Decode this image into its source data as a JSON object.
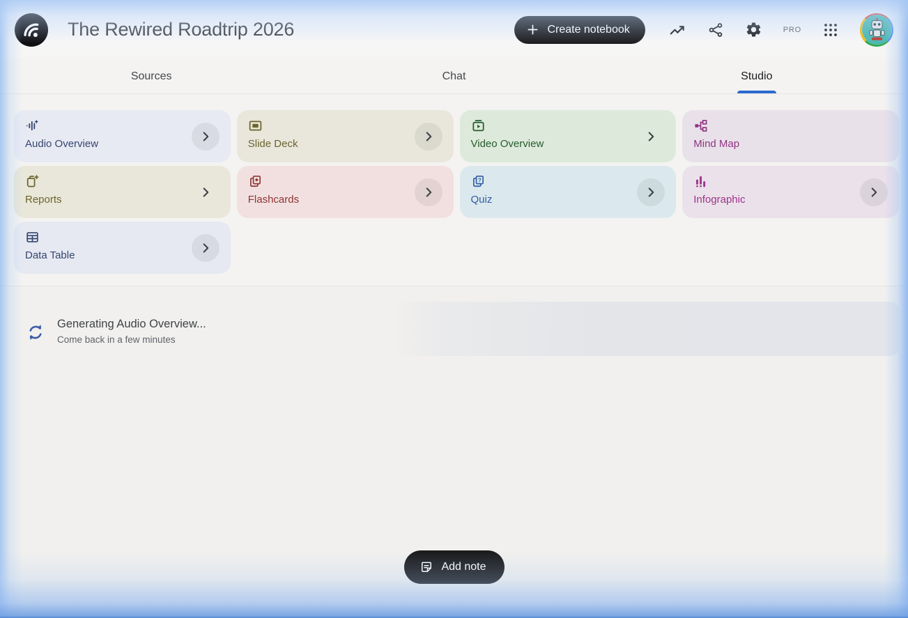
{
  "header": {
    "title": "The Rewired Roadtrip 2026",
    "create_button_label": "Create notebook",
    "pro_badge": "PRO"
  },
  "tabs": [
    {
      "label": "Sources",
      "active": false
    },
    {
      "label": "Chat",
      "active": false
    },
    {
      "label": "Studio",
      "active": true
    }
  ],
  "studio_cards": [
    {
      "label": "Audio Overview",
      "icon": "audio-waveform-icon",
      "bg": "#e8eaf3",
      "fg": "#36456f",
      "chevron": "circle"
    },
    {
      "label": "Slide Deck",
      "icon": "slide-deck-icon",
      "bg": "#e9e7db",
      "fg": "#6b642f",
      "chevron": "circle"
    },
    {
      "label": "Video Overview",
      "icon": "video-overview-icon",
      "bg": "#ddeadb",
      "fg": "#265c2e",
      "chevron": "plain"
    },
    {
      "label": "Mind Map",
      "icon": "mind-map-icon",
      "bg": "#e9e1e9",
      "fg": "#8f3483",
      "chevron": "none"
    },
    {
      "label": "Reports",
      "icon": "reports-icon",
      "bg": "#e9e7d9",
      "fg": "#6b642f",
      "chevron": "plain"
    },
    {
      "label": "Flashcards",
      "icon": "flashcards-icon",
      "bg": "#f2e0e0",
      "fg": "#8e3434",
      "chevron": "circle"
    },
    {
      "label": "Quiz",
      "icon": "quiz-icon",
      "bg": "#dbe8ed",
      "fg": "#2f5da5",
      "chevron": "circle"
    },
    {
      "label": "Infographic",
      "icon": "infographic-icon",
      "bg": "#ebe1ea",
      "fg": "#9c3489",
      "chevron": "circle"
    },
    {
      "label": "Data Table",
      "icon": "data-table-icon",
      "bg": "#e6e9f2",
      "fg": "#36456f",
      "chevron": "circle"
    }
  ],
  "status": {
    "title": "Generating Audio Overview...",
    "subtitle": "Come back in a few minutes"
  },
  "footer": {
    "add_note_label": "Add note"
  },
  "colors": {
    "accent_blue": "#2b6ad0",
    "button_black": "#1e1e20",
    "spinner_blue": "#3c5ca8"
  }
}
